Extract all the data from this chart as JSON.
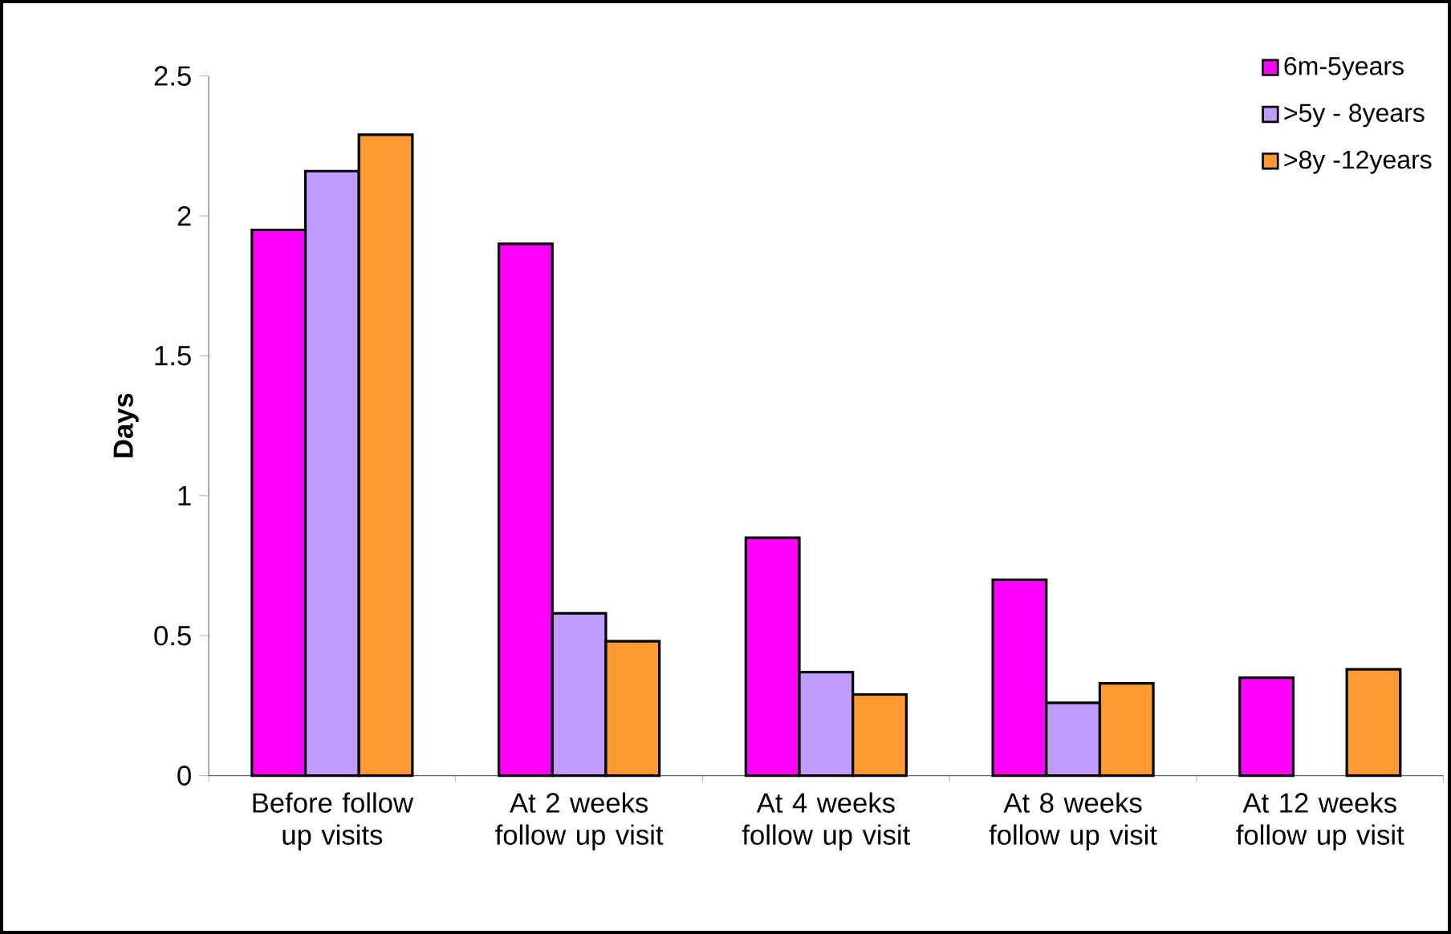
{
  "chart_data": {
    "type": "bar",
    "ylabel": "Days",
    "categories": [
      "Before follow up visits",
      "At 2 weeks follow up visit",
      "At 4 weeks follow up visit",
      "At 8 weeks follow up visit",
      "At 12 weeks follow up visit"
    ],
    "series": [
      {
        "name": "6m-5years",
        "color": "#ff00ff",
        "values": [
          1.95,
          1.9,
          0.85,
          0.7,
          0.35
        ]
      },
      {
        "name": ">5y  - 8years",
        "color": "#c09cff",
        "values": [
          2.16,
          0.58,
          0.37,
          0.26,
          null
        ]
      },
      {
        "name": ">8y -12years",
        "color": "#ff9933",
        "values": [
          2.29,
          0.48,
          0.29,
          0.33,
          0.38
        ]
      }
    ],
    "ylim": [
      0,
      2.5
    ],
    "yticks": [
      0,
      0.5,
      1,
      1.5,
      2,
      2.5
    ],
    "grid": false,
    "legend": "top right"
  }
}
